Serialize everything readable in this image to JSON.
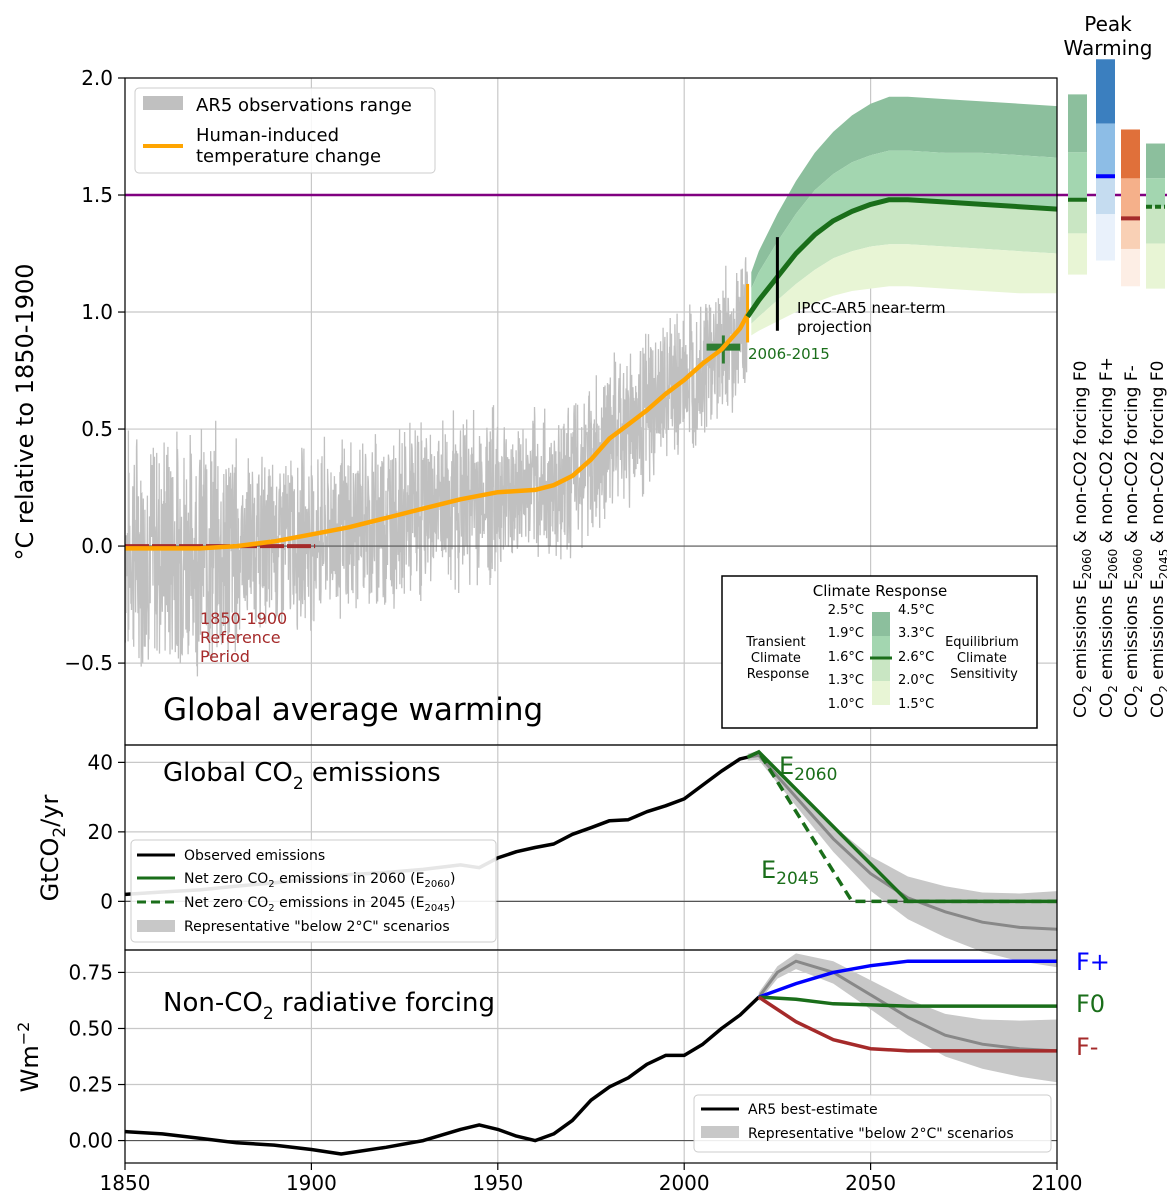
{
  "top": {
    "ylabel": "°C relative to 1850-1900",
    "yticks": [
      "2.0",
      "1.5",
      "1.0",
      "0.5",
      "0.0",
      "−0.5"
    ],
    "title": "Global average warming",
    "legend": {
      "obs": "AR5 observations range",
      "human_1": "Human-induced",
      "human_2": "temperature change"
    },
    "ref_label": [
      "1850-1900",
      "Reference",
      "Period"
    ],
    "decade_label": "2006-2015",
    "ipcc_label": [
      "IPCC-AR5 near-term",
      "projection"
    ],
    "climate_response": {
      "title": "Climate Response",
      "tcr_label": [
        "Transient",
        "Climate",
        "Response"
      ],
      "ecs_label": [
        "Equilibrium",
        "Climate",
        "Sensitivity"
      ],
      "tcr_values": [
        "2.5°C",
        "1.9°C",
        "1.6°C",
        "1.3°C",
        "1.0°C"
      ],
      "ecs_values": [
        "4.5°C",
        "3.3°C",
        "2.6°C",
        "2.0°C",
        "1.5°C"
      ]
    }
  },
  "peak": {
    "title_1": "Peak",
    "title_2": "Warming",
    "labels": [
      [
        "CO",
        "2",
        " emissions E",
        "2060",
        " & non-CO2 forcing F0"
      ],
      [
        "CO",
        "2",
        " emissions E",
        "2060",
        " & non-CO2 forcing F+"
      ],
      [
        "CO",
        "2",
        " emissions E",
        "2060",
        " & non-CO2 forcing F-"
      ],
      [
        "CO",
        "2",
        " emissions E",
        "2045",
        " & non-CO2 forcing F0"
      ]
    ]
  },
  "middle": {
    "title": [
      "Global CO",
      "2",
      " emissions"
    ],
    "ylabel": [
      "GtCO",
      "2",
      "/yr"
    ],
    "yticks": [
      "40",
      "20",
      "0"
    ],
    "e2060": [
      "E",
      "2060"
    ],
    "e2045": [
      "E",
      "2045"
    ],
    "legend": [
      [
        "Observed emissions"
      ],
      [
        "Net zero CO",
        "2",
        " emissions in 2060 (E",
        "2060",
        ")"
      ],
      [
        "Net zero CO",
        "2",
        " emissions in 2045 (E",
        "2045",
        ")"
      ],
      [
        "Representative \"below 2°C\" scenarios"
      ]
    ]
  },
  "bottom": {
    "title": [
      "Non-CO",
      "2",
      " radiative forcing"
    ],
    "ylabel": [
      "Wm",
      "−2"
    ],
    "yticks": [
      "0.75",
      "0.50",
      "0.25",
      "0.00"
    ],
    "xticks": [
      "1850",
      "1900",
      "1950",
      "2000",
      "2050",
      "2100"
    ],
    "fplus": "F+",
    "fzero": "F0",
    "fminus": "F-",
    "legend": [
      "AR5 best-estimate",
      "Representative \"below 2°C\" scenarios"
    ]
  },
  "colors": {
    "obs": "#c0c0c0",
    "human": "#ffa500",
    "green": "#1a6e1a",
    "purple": "#800080",
    "blue": "#0000ff",
    "red": "#a52a2a",
    "ref": "#a52a2a"
  },
  "chart_data": [
    {
      "type": "line",
      "name": "Global average warming",
      "ylabel": "°C relative to 1850-1900",
      "xlim": [
        1850,
        2100
      ],
      "ylim": [
        -0.85,
        2.0
      ],
      "grid": true,
      "reference_line": 1.5,
      "human_induced": {
        "x": [
          1850,
          1870,
          1880,
          1890,
          1900,
          1910,
          1920,
          1930,
          1940,
          1950,
          1960,
          1965,
          1970,
          1975,
          1980,
          1985,
          1990,
          1995,
          2000,
          2005,
          2010,
          2015,
          2017
        ],
        "y": [
          -0.01,
          -0.01,
          0.0,
          0.02,
          0.05,
          0.08,
          0.12,
          0.16,
          0.2,
          0.23,
          0.24,
          0.26,
          0.3,
          0.37,
          0.46,
          0.52,
          0.58,
          0.65,
          0.71,
          0.78,
          0.84,
          0.93,
          0.99
        ]
      },
      "projection_central_F0_E2060": {
        "x": [
          2017,
          2020,
          2025,
          2030,
          2035,
          2040,
          2045,
          2050,
          2055,
          2060,
          2070,
          2080,
          2090,
          2100
        ],
        "y": [
          0.98,
          1.05,
          1.15,
          1.25,
          1.33,
          1.39,
          1.43,
          1.46,
          1.48,
          1.48,
          1.47,
          1.46,
          1.45,
          1.44
        ]
      },
      "projection_bands": {
        "x": [
          2018,
          2020,
          2025,
          2030,
          2035,
          2040,
          2045,
          2050,
          2055,
          2060,
          2070,
          2080,
          2090,
          2100
        ],
        "tcr_2.5": [
          1.17,
          1.26,
          1.42,
          1.56,
          1.68,
          1.77,
          1.84,
          1.89,
          1.92,
          1.92,
          1.91,
          1.9,
          1.89,
          1.88
        ],
        "tcr_1.9": [
          1.1,
          1.17,
          1.3,
          1.42,
          1.52,
          1.59,
          1.64,
          1.67,
          1.69,
          1.69,
          1.68,
          1.68,
          1.67,
          1.66
        ],
        "tcr_1.3": [
          0.95,
          0.98,
          1.05,
          1.12,
          1.18,
          1.23,
          1.26,
          1.28,
          1.29,
          1.29,
          1.28,
          1.27,
          1.26,
          1.25
        ],
        "tcr_1.0": [
          0.9,
          0.92,
          0.96,
          1.0,
          1.04,
          1.07,
          1.09,
          1.1,
          1.11,
          1.11,
          1.1,
          1.09,
          1.08,
          1.08
        ]
      },
      "ipcc_ar5_near_term": {
        "x": 2025,
        "y": [
          0.92,
          1.32
        ]
      },
      "decade_2006_2015": {
        "x": [
          2006,
          2015
        ],
        "y": 0.85
      },
      "reference_period": {
        "x": [
          1850,
          1900
        ],
        "y": 0.0
      }
    },
    {
      "type": "bar",
      "name": "Peak Warming",
      "categories": [
        "E2060 F0",
        "E2060 F+",
        "E2060 F-",
        "E2045 F0"
      ],
      "central": [
        1.48,
        1.58,
        1.4,
        1.45
      ],
      "high": [
        1.93,
        2.08,
        1.78,
        1.72
      ],
      "low": [
        1.16,
        1.22,
        1.11,
        1.1
      ]
    },
    {
      "type": "line",
      "name": "Global CO2 emissions",
      "ylabel": "GtCO2/yr",
      "xlim": [
        1850,
        2100
      ],
      "ylim": [
        -14,
        45
      ],
      "observed": {
        "x": [
          1850,
          1860,
          1870,
          1880,
          1890,
          1900,
          1910,
          1920,
          1930,
          1940,
          1945,
          1950,
          1955,
          1960,
          1965,
          1970,
          1975,
          1980,
          1985,
          1990,
          1995,
          2000,
          2005,
          2010,
          2015,
          2017
        ],
        "y": [
          2.0,
          2.7,
          3.3,
          4.4,
          5.3,
          6.5,
          7.7,
          8.3,
          9.2,
          10.5,
          9.7,
          12.5,
          14.3,
          15.5,
          16.5,
          19.3,
          21.2,
          23.2,
          23.5,
          25.8,
          27.5,
          29.5,
          33.5,
          37.5,
          41.0,
          41.5
        ]
      },
      "E2060": {
        "x": [
          2017,
          2020,
          2060,
          2100
        ],
        "y": [
          41.5,
          43.0,
          0.0,
          0.0
        ]
      },
      "E2045": {
        "x": [
          2017,
          2020,
          2045,
          2100
        ],
        "y": [
          41.5,
          43.0,
          0.0,
          0.0
        ]
      },
      "scenario_median": {
        "x": [
          2017,
          2020,
          2030,
          2040,
          2050,
          2060,
          2070,
          2080,
          2090,
          2100
        ],
        "y": [
          41.5,
          42.0,
          30.0,
          18.0,
          8.0,
          1.0,
          -3.0,
          -6.0,
          -7.5,
          -8.0
        ]
      }
    },
    {
      "type": "line",
      "name": "Non-CO2 radiative forcing",
      "ylabel": "Wm−2",
      "xlim": [
        1850,
        2100
      ],
      "ylim": [
        -0.1,
        0.85
      ],
      "ar5_best_estimate": {
        "x": [
          1850,
          1860,
          1870,
          1880,
          1890,
          1900,
          1908,
          1920,
          1930,
          1940,
          1945,
          1950,
          1955,
          1960,
          1965,
          1970,
          1975,
          1980,
          1985,
          1990,
          1995,
          2000,
          2005,
          2010,
          2015,
          2020
        ],
        "y": [
          0.04,
          0.03,
          0.01,
          -0.01,
          -0.02,
          -0.04,
          -0.06,
          -0.03,
          0.0,
          0.05,
          0.07,
          0.05,
          0.02,
          0.0,
          0.03,
          0.09,
          0.18,
          0.24,
          0.28,
          0.34,
          0.38,
          0.38,
          0.43,
          0.5,
          0.56,
          0.64
        ]
      },
      "F_plus": {
        "x": [
          2020,
          2030,
          2040,
          2050,
          2060,
          2100
        ],
        "y": [
          0.64,
          0.7,
          0.75,
          0.78,
          0.8,
          0.8
        ]
      },
      "F_zero": {
        "x": [
          2020,
          2030,
          2040,
          2060,
          2100
        ],
        "y": [
          0.64,
          0.63,
          0.61,
          0.6,
          0.6
        ]
      },
      "F_minus": {
        "x": [
          2020,
          2030,
          2040,
          2050,
          2060,
          2100
        ],
        "y": [
          0.64,
          0.53,
          0.45,
          0.41,
          0.4,
          0.4
        ]
      },
      "scenario_median": {
        "x": [
          2020,
          2025,
          2030,
          2040,
          2050,
          2060,
          2070,
          2080,
          2090,
          2100
        ],
        "y": [
          0.64,
          0.75,
          0.8,
          0.75,
          0.65,
          0.55,
          0.47,
          0.43,
          0.41,
          0.4
        ]
      }
    }
  ]
}
